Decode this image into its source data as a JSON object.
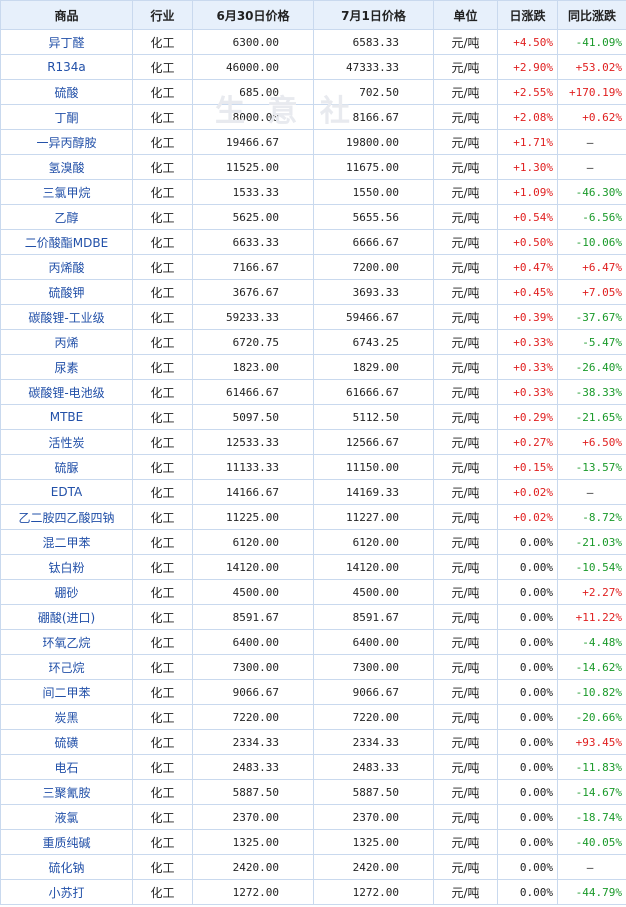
{
  "header": {
    "product": "商品",
    "industry": "行业",
    "price_0630": "6月30日价格",
    "price_0701": "7月1日价格",
    "unit": "单位",
    "daily_change": "日涨跌",
    "yoy_change": "同比涨跌"
  },
  "watermark": "生 意 社",
  "rows": [
    {
      "name": "异丁醛",
      "industry": "化工",
      "p1": "6300.00",
      "p2": "6583.33",
      "unit": "元/吨",
      "day": "+4.50%",
      "yoy": "-41.09%",
      "day_dir": "up",
      "yoy_dir": "down"
    },
    {
      "name": "R134a",
      "industry": "化工",
      "p1": "46000.00",
      "p2": "47333.33",
      "unit": "元/吨",
      "day": "+2.90%",
      "yoy": "+53.02%",
      "day_dir": "up",
      "yoy_dir": "up"
    },
    {
      "name": "硫酸",
      "industry": "化工",
      "p1": "685.00",
      "p2": "702.50",
      "unit": "元/吨",
      "day": "+2.55%",
      "yoy": "+170.19%",
      "day_dir": "up",
      "yoy_dir": "up"
    },
    {
      "name": "丁酮",
      "industry": "化工",
      "p1": "8000.00",
      "p2": "8166.67",
      "unit": "元/吨",
      "day": "+2.08%",
      "yoy": "+0.62%",
      "day_dir": "up",
      "yoy_dir": "up"
    },
    {
      "name": "一异丙醇胺",
      "industry": "化工",
      "p1": "19466.67",
      "p2": "19800.00",
      "unit": "元/吨",
      "day": "+1.71%",
      "yoy": "—",
      "day_dir": "up",
      "yoy_dir": "flat"
    },
    {
      "name": "氢溴酸",
      "industry": "化工",
      "p1": "11525.00",
      "p2": "11675.00",
      "unit": "元/吨",
      "day": "+1.30%",
      "yoy": "—",
      "day_dir": "up",
      "yoy_dir": "flat"
    },
    {
      "name": "三氯甲烷",
      "industry": "化工",
      "p1": "1533.33",
      "p2": "1550.00",
      "unit": "元/吨",
      "day": "+1.09%",
      "yoy": "-46.30%",
      "day_dir": "up",
      "yoy_dir": "down"
    },
    {
      "name": "乙醇",
      "industry": "化工",
      "p1": "5625.00",
      "p2": "5655.56",
      "unit": "元/吨",
      "day": "+0.54%",
      "yoy": "-6.56%",
      "day_dir": "up",
      "yoy_dir": "down"
    },
    {
      "name": "二价酸酯MDBE",
      "industry": "化工",
      "p1": "6633.33",
      "p2": "6666.67",
      "unit": "元/吨",
      "day": "+0.50%",
      "yoy": "-10.06%",
      "day_dir": "up",
      "yoy_dir": "down"
    },
    {
      "name": "丙烯酸",
      "industry": "化工",
      "p1": "7166.67",
      "p2": "7200.00",
      "unit": "元/吨",
      "day": "+0.47%",
      "yoy": "+6.47%",
      "day_dir": "up",
      "yoy_dir": "up"
    },
    {
      "name": "硫酸钾",
      "industry": "化工",
      "p1": "3676.67",
      "p2": "3693.33",
      "unit": "元/吨",
      "day": "+0.45%",
      "yoy": "+7.05%",
      "day_dir": "up",
      "yoy_dir": "up"
    },
    {
      "name": "碳酸锂-工业级",
      "industry": "化工",
      "p1": "59233.33",
      "p2": "59466.67",
      "unit": "元/吨",
      "day": "+0.39%",
      "yoy": "-37.67%",
      "day_dir": "up",
      "yoy_dir": "down"
    },
    {
      "name": "丙烯",
      "industry": "化工",
      "p1": "6720.75",
      "p2": "6743.25",
      "unit": "元/吨",
      "day": "+0.33%",
      "yoy": "-5.47%",
      "day_dir": "up",
      "yoy_dir": "down"
    },
    {
      "name": "尿素",
      "industry": "化工",
      "p1": "1823.00",
      "p2": "1829.00",
      "unit": "元/吨",
      "day": "+0.33%",
      "yoy": "-26.40%",
      "day_dir": "up",
      "yoy_dir": "down"
    },
    {
      "name": "碳酸锂-电池级",
      "industry": "化工",
      "p1": "61466.67",
      "p2": "61666.67",
      "unit": "元/吨",
      "day": "+0.33%",
      "yoy": "-38.33%",
      "day_dir": "up",
      "yoy_dir": "down"
    },
    {
      "name": "MTBE",
      "industry": "化工",
      "p1": "5097.50",
      "p2": "5112.50",
      "unit": "元/吨",
      "day": "+0.29%",
      "yoy": "-21.65%",
      "day_dir": "up",
      "yoy_dir": "down"
    },
    {
      "name": "活性炭",
      "industry": "化工",
      "p1": "12533.33",
      "p2": "12566.67",
      "unit": "元/吨",
      "day": "+0.27%",
      "yoy": "+6.50%",
      "day_dir": "up",
      "yoy_dir": "up"
    },
    {
      "name": "硫脲",
      "industry": "化工",
      "p1": "11133.33",
      "p2": "11150.00",
      "unit": "元/吨",
      "day": "+0.15%",
      "yoy": "-13.57%",
      "day_dir": "up",
      "yoy_dir": "down"
    },
    {
      "name": "EDTA",
      "industry": "化工",
      "p1": "14166.67",
      "p2": "14169.33",
      "unit": "元/吨",
      "day": "+0.02%",
      "yoy": "—",
      "day_dir": "up",
      "yoy_dir": "flat"
    },
    {
      "name": "乙二胺四乙酸四钠",
      "industry": "化工",
      "p1": "11225.00",
      "p2": "11227.00",
      "unit": "元/吨",
      "day": "+0.02%",
      "yoy": "-8.72%",
      "day_dir": "up",
      "yoy_dir": "down"
    },
    {
      "name": "混二甲苯",
      "industry": "化工",
      "p1": "6120.00",
      "p2": "6120.00",
      "unit": "元/吨",
      "day": "0.00%",
      "yoy": "-21.03%",
      "day_dir": "flat",
      "yoy_dir": "down"
    },
    {
      "name": "钛白粉",
      "industry": "化工",
      "p1": "14120.00",
      "p2": "14120.00",
      "unit": "元/吨",
      "day": "0.00%",
      "yoy": "-10.54%",
      "day_dir": "flat",
      "yoy_dir": "down"
    },
    {
      "name": "硼砂",
      "industry": "化工",
      "p1": "4500.00",
      "p2": "4500.00",
      "unit": "元/吨",
      "day": "0.00%",
      "yoy": "+2.27%",
      "day_dir": "flat",
      "yoy_dir": "up"
    },
    {
      "name": "硼酸(进口)",
      "industry": "化工",
      "p1": "8591.67",
      "p2": "8591.67",
      "unit": "元/吨",
      "day": "0.00%",
      "yoy": "+11.22%",
      "day_dir": "flat",
      "yoy_dir": "up"
    },
    {
      "name": "环氧乙烷",
      "industry": "化工",
      "p1": "6400.00",
      "p2": "6400.00",
      "unit": "元/吨",
      "day": "0.00%",
      "yoy": "-4.48%",
      "day_dir": "flat",
      "yoy_dir": "down"
    },
    {
      "name": "环己烷",
      "industry": "化工",
      "p1": "7300.00",
      "p2": "7300.00",
      "unit": "元/吨",
      "day": "0.00%",
      "yoy": "-14.62%",
      "day_dir": "flat",
      "yoy_dir": "down"
    },
    {
      "name": "间二甲苯",
      "industry": "化工",
      "p1": "9066.67",
      "p2": "9066.67",
      "unit": "元/吨",
      "day": "0.00%",
      "yoy": "-10.82%",
      "day_dir": "flat",
      "yoy_dir": "down"
    },
    {
      "name": "炭黑",
      "industry": "化工",
      "p1": "7220.00",
      "p2": "7220.00",
      "unit": "元/吨",
      "day": "0.00%",
      "yoy": "-20.66%",
      "day_dir": "flat",
      "yoy_dir": "down"
    },
    {
      "name": "硫磺",
      "industry": "化工",
      "p1": "2334.33",
      "p2": "2334.33",
      "unit": "元/吨",
      "day": "0.00%",
      "yoy": "+93.45%",
      "day_dir": "flat",
      "yoy_dir": "up"
    },
    {
      "name": "电石",
      "industry": "化工",
      "p1": "2483.33",
      "p2": "2483.33",
      "unit": "元/吨",
      "day": "0.00%",
      "yoy": "-11.83%",
      "day_dir": "flat",
      "yoy_dir": "down"
    },
    {
      "name": "三聚氰胺",
      "industry": "化工",
      "p1": "5887.50",
      "p2": "5887.50",
      "unit": "元/吨",
      "day": "0.00%",
      "yoy": "-14.67%",
      "day_dir": "flat",
      "yoy_dir": "down"
    },
    {
      "name": "液氯",
      "industry": "化工",
      "p1": "2370.00",
      "p2": "2370.00",
      "unit": "元/吨",
      "day": "0.00%",
      "yoy": "-18.74%",
      "day_dir": "flat",
      "yoy_dir": "down"
    },
    {
      "name": "重质纯碱",
      "industry": "化工",
      "p1": "1325.00",
      "p2": "1325.00",
      "unit": "元/吨",
      "day": "0.00%",
      "yoy": "-40.05%",
      "day_dir": "flat",
      "yoy_dir": "down"
    },
    {
      "name": "硫化钠",
      "industry": "化工",
      "p1": "2420.00",
      "p2": "2420.00",
      "unit": "元/吨",
      "day": "0.00%",
      "yoy": "—",
      "day_dir": "flat",
      "yoy_dir": "flat"
    },
    {
      "name": "小苏打",
      "industry": "化工",
      "p1": "1272.00",
      "p2": "1272.00",
      "unit": "元/吨",
      "day": "0.00%",
      "yoy": "-44.79%",
      "day_dir": "flat",
      "yoy_dir": "down"
    }
  ]
}
